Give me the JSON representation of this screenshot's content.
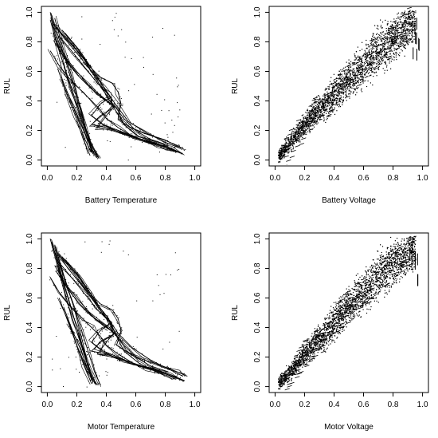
{
  "chart_data": [
    {
      "type": "line",
      "xlabel": "Battery Temperature",
      "ylabel": "RUL",
      "xlim": [
        0.0,
        1.0
      ],
      "ylim": [
        0.0,
        1.0
      ],
      "x_ticks": [
        "0.0",
        "0.2",
        "0.4",
        "0.6",
        "0.8",
        "1.0"
      ],
      "y_ticks": [
        "0.0",
        "0.2",
        "0.4",
        "0.6",
        "0.8",
        "1.0"
      ],
      "grid": false,
      "series": [
        {
          "x": [
            0.02,
            0.05,
            0.1,
            0.16,
            0.22,
            0.28,
            0.34
          ],
          "y": [
            1.0,
            0.86,
            0.68,
            0.48,
            0.3,
            0.14,
            0.02
          ]
        },
        {
          "x": [
            0.03,
            0.08,
            0.14,
            0.2,
            0.26,
            0.31
          ],
          "y": [
            0.98,
            0.82,
            0.62,
            0.42,
            0.22,
            0.04
          ]
        },
        {
          "x": [
            0.05,
            0.1,
            0.17,
            0.24,
            0.3
          ],
          "y": [
            0.96,
            0.78,
            0.55,
            0.3,
            0.05
          ]
        },
        {
          "x": [
            0.02,
            0.06,
            0.12,
            0.18,
            0.24,
            0.3,
            0.35
          ],
          "y": [
            0.95,
            0.8,
            0.62,
            0.44,
            0.26,
            0.1,
            0.01
          ]
        },
        {
          "x": [
            0.04,
            0.12,
            0.22,
            0.3,
            0.38,
            0.46,
            0.55,
            0.68,
            0.8,
            0.9
          ],
          "y": [
            0.92,
            0.82,
            0.7,
            0.6,
            0.5,
            0.38,
            0.26,
            0.18,
            0.12,
            0.08
          ]
        },
        {
          "x": [
            0.06,
            0.15,
            0.25,
            0.33,
            0.4,
            0.46,
            0.52,
            0.62,
            0.74,
            0.86
          ],
          "y": [
            0.9,
            0.8,
            0.68,
            0.55,
            0.44,
            0.34,
            0.24,
            0.16,
            0.11,
            0.06
          ]
        },
        {
          "x": [
            0.1,
            0.2,
            0.28,
            0.36,
            0.44,
            0.48,
            0.5,
            0.48,
            0.56,
            0.66,
            0.78,
            0.88,
            0.93
          ],
          "y": [
            0.88,
            0.76,
            0.64,
            0.56,
            0.52,
            0.46,
            0.38,
            0.28,
            0.22,
            0.18,
            0.14,
            0.1,
            0.07
          ]
        },
        {
          "x": [
            0.12,
            0.22,
            0.3,
            0.38,
            0.42,
            0.36,
            0.3,
            0.38,
            0.48,
            0.6,
            0.72,
            0.84,
            0.92
          ],
          "y": [
            0.86,
            0.74,
            0.62,
            0.5,
            0.42,
            0.38,
            0.3,
            0.24,
            0.2,
            0.15,
            0.12,
            0.08,
            0.04
          ]
        },
        {
          "x": [
            0.08,
            0.18,
            0.26,
            0.34,
            0.42,
            0.45,
            0.4,
            0.34,
            0.44,
            0.56,
            0.68,
            0.8
          ],
          "y": [
            0.84,
            0.72,
            0.62,
            0.52,
            0.44,
            0.36,
            0.3,
            0.22,
            0.2,
            0.16,
            0.12,
            0.09
          ]
        },
        {
          "x": [
            0.05,
            0.12,
            0.2,
            0.27,
            0.33,
            0.4,
            0.46,
            0.36,
            0.3,
            0.4,
            0.52,
            0.64,
            0.76,
            0.88
          ],
          "y": [
            0.82,
            0.7,
            0.6,
            0.52,
            0.45,
            0.4,
            0.36,
            0.3,
            0.24,
            0.22,
            0.18,
            0.14,
            0.1,
            0.06
          ]
        },
        {
          "x": [
            0.06,
            0.14,
            0.22,
            0.3,
            0.38,
            0.46,
            0.52,
            0.6,
            0.7,
            0.82
          ],
          "y": [
            0.78,
            0.66,
            0.56,
            0.48,
            0.42,
            0.36,
            0.28,
            0.2,
            0.14,
            0.1
          ]
        },
        {
          "x": [
            0.02,
            0.08,
            0.16,
            0.24,
            0.3,
            0.36,
            0.4,
            0.48,
            0.58,
            0.7,
            0.82,
            0.92
          ],
          "y": [
            0.74,
            0.64,
            0.54,
            0.46,
            0.4,
            0.34,
            0.28,
            0.22,
            0.16,
            0.12,
            0.08,
            0.04
          ]
        },
        {
          "x": [
            0.07,
            0.13,
            0.19,
            0.24,
            0.29
          ],
          "y": [
            0.62,
            0.45,
            0.3,
            0.15,
            0.03
          ]
        },
        {
          "x": [
            0.1,
            0.16,
            0.22,
            0.28,
            0.33
          ],
          "y": [
            0.55,
            0.4,
            0.26,
            0.12,
            0.02
          ]
        },
        {
          "x": [
            0.14,
            0.2,
            0.25,
            0.3
          ],
          "y": [
            0.45,
            0.3,
            0.15,
            0.05
          ]
        }
      ]
    },
    {
      "type": "scatter",
      "xlabel": "Battery Voltage",
      "ylabel": "RUL",
      "xlim": [
        0.0,
        1.0
      ],
      "ylim": [
        0.0,
        1.0
      ],
      "x_ticks": [
        "0.0",
        "0.2",
        "0.4",
        "0.6",
        "0.8",
        "1.0"
      ],
      "y_ticks": [
        "0.0",
        "0.2",
        "0.4",
        "0.6",
        "0.8",
        "1.0"
      ],
      "grid": false,
      "series": [
        {
          "x": [
            0.02,
            0.05,
            0.1,
            0.15,
            0.2,
            0.25,
            0.3,
            0.35,
            0.4,
            0.45,
            0.5,
            0.55,
            0.6,
            0.65,
            0.7,
            0.75,
            0.8,
            0.85,
            0.9,
            0.95
          ],
          "y": [
            0.03,
            0.06,
            0.12,
            0.18,
            0.24,
            0.3,
            0.35,
            0.4,
            0.45,
            0.5,
            0.55,
            0.6,
            0.65,
            0.7,
            0.74,
            0.78,
            0.83,
            0.88,
            0.92,
            0.96
          ]
        }
      ]
    },
    {
      "type": "line",
      "xlabel": "Motor Temperature",
      "ylabel": "RUL",
      "xlim": [
        0.0,
        1.0
      ],
      "ylim": [
        0.0,
        1.0
      ],
      "x_ticks": [
        "0.0",
        "0.2",
        "0.4",
        "0.6",
        "0.8",
        "1.0"
      ],
      "y_ticks": [
        "0.0",
        "0.2",
        "0.4",
        "0.6",
        "0.8",
        "1.0"
      ],
      "grid": false,
      "series": [
        {
          "x": [
            0.02,
            0.06,
            0.11,
            0.17,
            0.23,
            0.28,
            0.33
          ],
          "y": [
            1.0,
            0.85,
            0.66,
            0.46,
            0.28,
            0.12,
            0.01
          ]
        },
        {
          "x": [
            0.03,
            0.08,
            0.14,
            0.2,
            0.26,
            0.31
          ],
          "y": [
            0.98,
            0.8,
            0.6,
            0.4,
            0.2,
            0.03
          ]
        },
        {
          "x": [
            0.05,
            0.11,
            0.18,
            0.24,
            0.3
          ],
          "y": [
            0.96,
            0.76,
            0.54,
            0.3,
            0.04
          ]
        },
        {
          "x": [
            0.04,
            0.1,
            0.16,
            0.22,
            0.27,
            0.32,
            0.36
          ],
          "y": [
            0.94,
            0.78,
            0.6,
            0.42,
            0.26,
            0.1,
            0.01
          ]
        },
        {
          "x": [
            0.06,
            0.14,
            0.24,
            0.32,
            0.4,
            0.48,
            0.58,
            0.7,
            0.82,
            0.92
          ],
          "y": [
            0.92,
            0.8,
            0.68,
            0.58,
            0.48,
            0.36,
            0.26,
            0.18,
            0.12,
            0.07
          ]
        },
        {
          "x": [
            0.08,
            0.17,
            0.26,
            0.34,
            0.42,
            0.47,
            0.52,
            0.62,
            0.74,
            0.85
          ],
          "y": [
            0.9,
            0.78,
            0.66,
            0.54,
            0.44,
            0.34,
            0.24,
            0.16,
            0.1,
            0.05
          ]
        },
        {
          "x": [
            0.1,
            0.2,
            0.28,
            0.36,
            0.44,
            0.48,
            0.5,
            0.47,
            0.56,
            0.66,
            0.78,
            0.88,
            0.95
          ],
          "y": [
            0.88,
            0.76,
            0.64,
            0.56,
            0.52,
            0.46,
            0.38,
            0.28,
            0.22,
            0.18,
            0.14,
            0.1,
            0.07
          ]
        },
        {
          "x": [
            0.12,
            0.22,
            0.3,
            0.38,
            0.42,
            0.36,
            0.3,
            0.38,
            0.48,
            0.6,
            0.72,
            0.84,
            0.93
          ],
          "y": [
            0.86,
            0.74,
            0.62,
            0.5,
            0.42,
            0.38,
            0.3,
            0.24,
            0.2,
            0.15,
            0.12,
            0.08,
            0.04
          ]
        },
        {
          "x": [
            0.08,
            0.18,
            0.26,
            0.34,
            0.42,
            0.45,
            0.4,
            0.34,
            0.44,
            0.56,
            0.68,
            0.8
          ],
          "y": [
            0.84,
            0.72,
            0.62,
            0.52,
            0.44,
            0.36,
            0.3,
            0.22,
            0.2,
            0.16,
            0.12,
            0.09
          ]
        },
        {
          "x": [
            0.05,
            0.12,
            0.2,
            0.27,
            0.33,
            0.4,
            0.46,
            0.36,
            0.3,
            0.4,
            0.52,
            0.64,
            0.76,
            0.88
          ],
          "y": [
            0.82,
            0.7,
            0.6,
            0.52,
            0.45,
            0.4,
            0.36,
            0.3,
            0.24,
            0.22,
            0.18,
            0.14,
            0.1,
            0.06
          ]
        },
        {
          "x": [
            0.06,
            0.14,
            0.22,
            0.3,
            0.38,
            0.46,
            0.52,
            0.6,
            0.7,
            0.82
          ],
          "y": [
            0.78,
            0.66,
            0.56,
            0.48,
            0.42,
            0.36,
            0.28,
            0.2,
            0.14,
            0.1
          ]
        },
        {
          "x": [
            0.02,
            0.08,
            0.16,
            0.24,
            0.3,
            0.36,
            0.4,
            0.48,
            0.58,
            0.7,
            0.82,
            0.92
          ],
          "y": [
            0.74,
            0.64,
            0.54,
            0.46,
            0.4,
            0.34,
            0.28,
            0.22,
            0.16,
            0.12,
            0.08,
            0.04
          ]
        },
        {
          "x": [
            0.08,
            0.14,
            0.2,
            0.25,
            0.3
          ],
          "y": [
            0.6,
            0.44,
            0.28,
            0.14,
            0.02
          ]
        },
        {
          "x": [
            0.11,
            0.17,
            0.23,
            0.28,
            0.34
          ],
          "y": [
            0.54,
            0.38,
            0.24,
            0.1,
            0.01
          ]
        },
        {
          "x": [
            0.15,
            0.2,
            0.26,
            0.31
          ],
          "y": [
            0.42,
            0.28,
            0.14,
            0.04
          ]
        }
      ]
    },
    {
      "type": "scatter",
      "xlabel": "Motor Voltage",
      "ylabel": "RUL",
      "xlim": [
        0.0,
        1.0
      ],
      "ylim": [
        0.0,
        1.0
      ],
      "x_ticks": [
        "0.0",
        "0.2",
        "0.4",
        "0.6",
        "0.8",
        "1.0"
      ],
      "y_ticks": [
        "0.0",
        "0.2",
        "0.4",
        "0.6",
        "0.8",
        "1.0"
      ],
      "grid": false,
      "series": [
        {
          "x": [
            0.02,
            0.05,
            0.1,
            0.15,
            0.2,
            0.25,
            0.3,
            0.35,
            0.4,
            0.45,
            0.5,
            0.55,
            0.6,
            0.65,
            0.7,
            0.75,
            0.8,
            0.85,
            0.9,
            0.95
          ],
          "y": [
            0.03,
            0.05,
            0.1,
            0.16,
            0.22,
            0.28,
            0.33,
            0.38,
            0.44,
            0.5,
            0.55,
            0.6,
            0.65,
            0.7,
            0.75,
            0.8,
            0.84,
            0.88,
            0.92,
            0.95
          ]
        }
      ]
    }
  ]
}
